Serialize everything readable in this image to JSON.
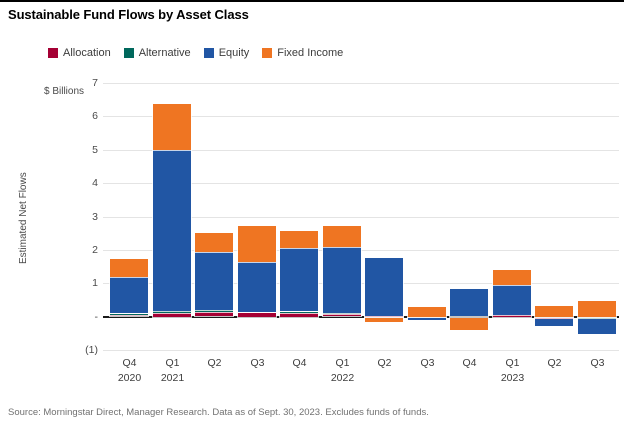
{
  "title": "Sustainable Fund Flows by Asset Class",
  "y_axis_unit": "$ Billions",
  "y_axis_title": "Estimated Net Flows",
  "footer": "Source: Morningstar Direct, Manager Research. Data as of Sept. 30, 2023. Excludes funds of funds.",
  "colors": {
    "allocation": "#A50034",
    "alternative": "#00685C",
    "equity": "#2156A4",
    "fixed_income": "#EF7522",
    "gridline": "#E4E4E4",
    "zero_axis": "#1A1A1A"
  },
  "chart_data": {
    "type": "bar",
    "stacked": true,
    "title": "Sustainable Fund Flows by Asset Class",
    "unit": "$ Billions",
    "ylabel": "Estimated Net Flows",
    "xlabel": "",
    "ylim": [
      -1,
      7
    ],
    "grid": true,
    "legend_position": "top",
    "yticks": [
      {
        "value": 7,
        "label": "7"
      },
      {
        "value": 6,
        "label": "6"
      },
      {
        "value": 5,
        "label": "5"
      },
      {
        "value": 4,
        "label": "4"
      },
      {
        "value": 3,
        "label": "3"
      },
      {
        "value": 2,
        "label": "2"
      },
      {
        "value": 1,
        "label": "1"
      },
      {
        "value": 0,
        "label": "-"
      },
      {
        "value": -1,
        "label": "(1)"
      }
    ],
    "categories": [
      {
        "quarter": "Q4",
        "year": "2020"
      },
      {
        "quarter": "Q1",
        "year": "2021"
      },
      {
        "quarter": "Q2",
        "year": ""
      },
      {
        "quarter": "Q3",
        "year": ""
      },
      {
        "quarter": "Q4",
        "year": ""
      },
      {
        "quarter": "Q1",
        "year": "2022"
      },
      {
        "quarter": "Q2",
        "year": ""
      },
      {
        "quarter": "Q3",
        "year": ""
      },
      {
        "quarter": "Q4",
        "year": ""
      },
      {
        "quarter": "Q1",
        "year": "2023"
      },
      {
        "quarter": "Q2",
        "year": ""
      },
      {
        "quarter": "Q3",
        "year": ""
      }
    ],
    "series": [
      {
        "name": "Allocation",
        "color": "#A50034",
        "values": [
          0.07,
          0.12,
          0.13,
          0.12,
          0.12,
          0.07,
          0.02,
          0.0,
          0.0,
          0.06,
          -0.03,
          0.0
        ]
      },
      {
        "name": "Alternative",
        "color": "#00685C",
        "values": [
          0.02,
          0.06,
          0.06,
          0.04,
          0.03,
          0.03,
          0.0,
          0.0,
          0.0,
          0.0,
          0.0,
          -0.03
        ]
      },
      {
        "name": "Equity",
        "color": "#2156A4",
        "values": [
          1.09,
          4.82,
          1.74,
          1.49,
          1.9,
          1.98,
          1.73,
          -0.07,
          0.82,
          0.9,
          -0.2,
          -0.45
        ]
      },
      {
        "name": "Fixed Income",
        "color": "#EF7522",
        "values": [
          0.55,
          1.37,
          0.57,
          1.07,
          0.52,
          0.64,
          -0.12,
          0.3,
          -0.37,
          0.45,
          0.32,
          0.47
        ]
      }
    ]
  }
}
